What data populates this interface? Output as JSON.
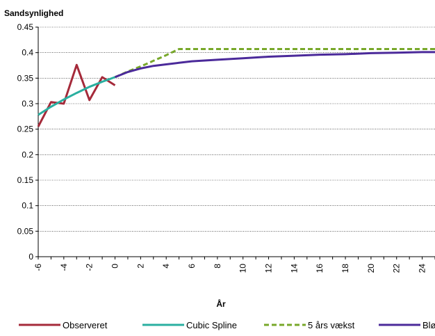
{
  "chart_data": {
    "type": "line",
    "xlabel": "År",
    "ylabel": "Sandsynlighed",
    "xlim": [
      -6,
      25
    ],
    "ylim": [
      0,
      0.45
    ],
    "x_ticks": [
      -6,
      -4,
      -2,
      0,
      2,
      4,
      6,
      8,
      10,
      12,
      14,
      16,
      18,
      20,
      22,
      24
    ],
    "y_ticks": [
      0,
      0.05,
      0.1,
      0.15,
      0.2,
      0.25,
      0.3,
      0.35,
      0.4,
      0.45
    ],
    "y_tick_labels": [
      "0",
      "0.05",
      "0.1",
      "0.15",
      "0.2",
      "0.25",
      "0.3",
      "0.35",
      "0.4",
      "0.45"
    ],
    "grid": true,
    "legend_position": "bottom",
    "series": [
      {
        "name": "Observeret",
        "color": "#A52A3A",
        "dash": "solid",
        "x": [
          -6,
          -5,
          -4,
          -3,
          -2,
          -1,
          0
        ],
        "y": [
          0.255,
          0.303,
          0.3,
          0.376,
          0.307,
          0.352,
          0.336
        ]
      },
      {
        "name": "Cubic Spline",
        "color": "#2AAFA0",
        "dash": "solid",
        "x": [
          -6,
          -5,
          -4,
          -3,
          -2,
          -1,
          0
        ],
        "y": [
          0.278,
          0.294,
          0.308,
          0.321,
          0.333,
          0.343,
          0.352
        ]
      },
      {
        "name": "5 års vækst",
        "color": "#78A82A",
        "dash": "dashed",
        "x": [
          0,
          1,
          2,
          3,
          4,
          5,
          6,
          8,
          10,
          12,
          14,
          16,
          18,
          20,
          22,
          24,
          25
        ],
        "y": [
          0.352,
          0.363,
          0.373,
          0.384,
          0.395,
          0.407,
          0.407,
          0.407,
          0.407,
          0.407,
          0.407,
          0.407,
          0.407,
          0.407,
          0.407,
          0.407,
          0.407
        ]
      },
      {
        "name": "Blød",
        "color": "#4B2A9A",
        "dash": "solid",
        "x": [
          0,
          1,
          2,
          3,
          4,
          5,
          6,
          8,
          10,
          12,
          14,
          16,
          18,
          20,
          22,
          24,
          25
        ],
        "y": [
          0.352,
          0.362,
          0.369,
          0.374,
          0.377,
          0.38,
          0.383,
          0.386,
          0.389,
          0.392,
          0.394,
          0.396,
          0.397,
          0.399,
          0.4,
          0.401,
          0.401
        ]
      }
    ]
  }
}
